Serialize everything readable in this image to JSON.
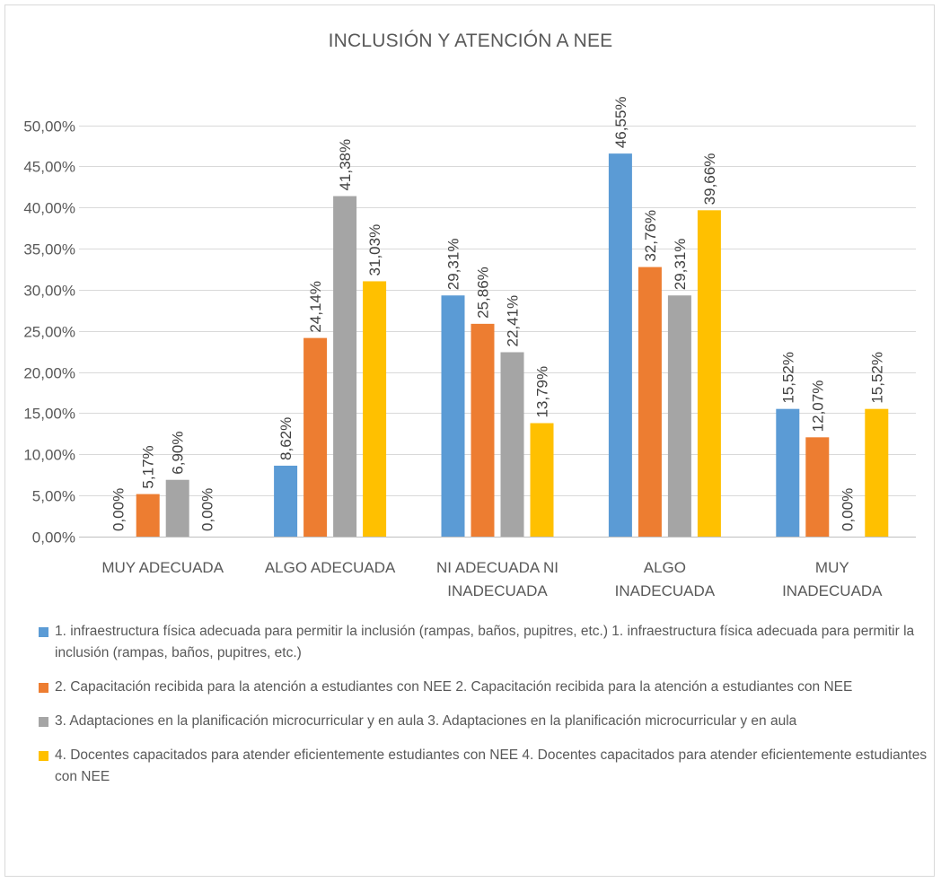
{
  "chart_data": {
    "type": "bar",
    "title": "INCLUSIÓN Y ATENCIÓN A NEE",
    "categories": [
      [
        "MUY ADECUADA"
      ],
      [
        "ALGO ADECUADA"
      ],
      [
        "NI ADECUADA NI",
        "INADECUADA"
      ],
      [
        "ALGO",
        "INADECUADA"
      ],
      [
        "MUY",
        "INADECUADA"
      ]
    ],
    "ylim": [
      0,
      0.5
    ],
    "yticks": [
      "0,00%",
      "5,00%",
      "10,00%",
      "15,00%",
      "20,00%",
      "25,00%",
      "30,00%",
      "35,00%",
      "40,00%",
      "45,00%",
      "50,00%"
    ],
    "grid": true,
    "legend_position": "bottom",
    "series": [
      {
        "name": "1. infraestructura física adecuada para permitir la inclusión (rampas, baños, pupitres, etc.) 1. infraestructura física adecuada para permitir la inclusión (rampas, baños, pupitres, etc.)",
        "color": "#5b9bd5",
        "values": [
          0.0,
          0.0862,
          0.2931,
          0.4655,
          0.1552
        ],
        "labels": [
          "0,00%",
          "8,62%",
          "29,31%",
          "46,55%",
          "15,52%"
        ]
      },
      {
        "name": "2. Capacitación recibida para la atención a estudiantes con NEE 2. Capacitación recibida para la atención a estudiantes con NEE",
        "color": "#ed7d31",
        "values": [
          0.0517,
          0.2414,
          0.2586,
          0.3276,
          0.1207
        ],
        "labels": [
          "5,17%",
          "24,14%",
          "25,86%",
          "32,76%",
          "12,07%"
        ]
      },
      {
        "name": "3. Adaptaciones en la planificación microcurricular y en aula  3. Adaptaciones en la planificación microcurricular y en aula",
        "color": "#a5a5a5",
        "values": [
          0.069,
          0.4138,
          0.2241,
          0.2931,
          0.0
        ],
        "labels": [
          "6,90%",
          "41,38%",
          "22,41%",
          "29,31%",
          "0,00%"
        ]
      },
      {
        "name": "4. Docentes capacitados para atender eficientemente estudiantes con NEE 4. Docentes capacitados para atender eficientemente estudiantes con NEE",
        "color": "#ffc000",
        "values": [
          0.0,
          0.3103,
          0.1379,
          0.3966,
          0.1552
        ],
        "labels": [
          "0,00%",
          "31,03%",
          "13,79%",
          "39,66%",
          "15,52%"
        ]
      }
    ]
  }
}
